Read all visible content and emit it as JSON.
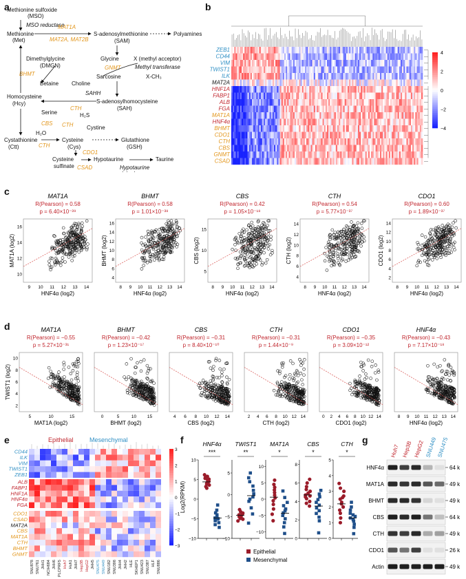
{
  "panels": {
    "a": "a",
    "b": "b",
    "c": "c",
    "d": "d",
    "e": "e",
    "f": "f",
    "g": "g"
  },
  "colors": {
    "orange": "#e2951a",
    "blue": "#2f8fc4",
    "red": "#c0252d",
    "heat_high": "#d7191c",
    "heat_low": "#1f2fd6",
    "epithelial": "#9b1c2a",
    "mesenchymal": "#1f4f8a"
  },
  "pathway": {
    "mso": "Methionine sulfoxide",
    "mso_abbr": "(MSO)",
    "mso_reductase": "MSO reductase",
    "met": "Methionine",
    "met_abbr": "(Met)",
    "mat1a": "MAT1A",
    "mat2ab": "MAT2A, MAT2B",
    "sam": "S-adenosylmethionine",
    "sam_abbr": "(SAM)",
    "polyamines": "Polyamines",
    "dmgn": "Dimethylglycine",
    "dmgn_abbr": "(DMGN)",
    "bhmt": "BHMT",
    "betaine": "Betaine",
    "choline": "Choline",
    "glycine": "Glycine",
    "gnmt": "GNMT",
    "sarcosine": "Sarcosine",
    "x_acceptor": "X (methyl acceptor)",
    "methyl_transferase": "Methyl transferase",
    "xch3": "X-CH₃",
    "hcy": "Homocysteine",
    "hcy_abbr": "(Hcy)",
    "sahh": "SAHH",
    "sah": "S-adenosylhomocysteine",
    "sah_abbr": "(SAH)",
    "serine": "Serine",
    "cth": "CTH",
    "h2s": "H₂S",
    "cbs": "CBS",
    "h2o": "H₂O",
    "cystine": "Cystine",
    "ctt": "Cystathionine",
    "ctt_abbr": "(Ctt)",
    "cys": "Cysteine",
    "cys_abbr": "(Cys)",
    "gsh": "Glutathione",
    "gsh_abbr": "(GSH)",
    "cdo1": "CDO1",
    "cys_sulfinate_1": "Cysteine",
    "cys_sulfinate_2": "sulfinate",
    "csad": "CSAD",
    "hypotaurine": "Hypotaurine",
    "taurine": "Taurine",
    "htd_1": "Hypotaurine",
    "htd_2": "dehydrogenase"
  },
  "heatmap_b": {
    "genes": [
      {
        "name": "ZEB1",
        "group": "blue"
      },
      {
        "name": "CD44",
        "group": "blue"
      },
      {
        "name": "VIM",
        "group": "blue"
      },
      {
        "name": "TWIST1",
        "group": "blue"
      },
      {
        "name": "ILK",
        "group": "blue"
      },
      {
        "name": "MAT2A",
        "group": "black"
      },
      {
        "name": "HNF1A",
        "group": "red"
      },
      {
        "name": "FABP1",
        "group": "red"
      },
      {
        "name": "ALB",
        "group": "red"
      },
      {
        "name": "FGA",
        "group": "red"
      },
      {
        "name": "MAT1A",
        "group": "orange"
      },
      {
        "name": "HNF4α",
        "group": "red"
      },
      {
        "name": "BHMT",
        "group": "orange"
      },
      {
        "name": "CDO1",
        "group": "orange"
      },
      {
        "name": "CTH",
        "group": "orange"
      },
      {
        "name": "CBS",
        "group": "orange"
      },
      {
        "name": "GNMT",
        "group": "orange"
      },
      {
        "name": "CSAD",
        "group": "orange"
      }
    ],
    "scale_ticks": [
      "4",
      "2",
      "0",
      "−2",
      "−4"
    ]
  },
  "scatter_c": {
    "xlabel": "HNF4α (log2)",
    "plots": [
      {
        "gene": "MAT1A",
        "ylabel": "MAT1A (log2)",
        "r": "R(Pearson) = 0.58",
        "p": "p = 6.40×10⁻³⁹",
        "xticks": [
          "9",
          "10",
          "11",
          "12",
          "13",
          "14"
        ],
        "yticks": [
          "10",
          "12",
          "14",
          "16"
        ],
        "r_val": 0.58
      },
      {
        "gene": "BHMT",
        "ylabel": "BHMT (log2)",
        "r": "R(Pearson) = 0.58",
        "p": "p = 1.01×10⁻³⁸",
        "xticks": [
          "8",
          "9",
          "10",
          "11",
          "12",
          "13",
          "14"
        ],
        "yticks": [
          "4",
          "6",
          "8",
          "10",
          "12",
          "14",
          "16"
        ],
        "r_val": 0.58
      },
      {
        "gene": "CBS",
        "ylabel": "CBS (log2)",
        "r": "R(Pearson) = 0.42",
        "p": "p = 1.05×10⁻¹⁸",
        "xticks": [
          "8",
          "9",
          "10",
          "11",
          "12",
          "13",
          "14"
        ],
        "yticks": [
          "5",
          "10",
          "15"
        ],
        "r_val": 0.42
      },
      {
        "gene": "CTH",
        "ylabel": "CTH (log2)",
        "r": "R(Pearson) = 0.54",
        "p": "p = 5.77×10⁻³⁷",
        "xticks": [
          "8",
          "9",
          "10",
          "11",
          "12",
          "13",
          "14"
        ],
        "yticks": [
          "4",
          "6",
          "8",
          "10",
          "12",
          "14"
        ],
        "r_val": 0.54
      },
      {
        "gene": "CDO1",
        "ylabel": "CDO1 (log2)",
        "r": "R(Pearson) = 0.60",
        "p": "p = 1.89×10⁻³⁷",
        "xticks": [
          "8",
          "9",
          "10",
          "11",
          "12",
          "13",
          "14"
        ],
        "yticks": [
          "2",
          "4",
          "6",
          "8",
          "10",
          "12",
          "14"
        ],
        "r_val": 0.6
      }
    ]
  },
  "scatter_d": {
    "ylabel": "TWIST1 (log2)",
    "plots": [
      {
        "gene": "MAT1A",
        "xlabel": "MAT1A (log2)",
        "r": "R(Pearson) = −0.55",
        "p": "p = 5.27×10⁻³¹",
        "xticks": [
          "5",
          "10",
          "15"
        ],
        "yticks": [
          "2",
          "4",
          "6",
          "8",
          "10"
        ],
        "r_val": -0.55
      },
      {
        "gene": "BHMT",
        "xlabel": "BHMT (log2)",
        "r": "R(Pearson) = −0.42",
        "p": "p = 1.23×10⁻¹⁷",
        "xticks": [
          "0",
          "5",
          "10",
          "15"
        ],
        "yticks": [],
        "r_val": -0.42
      },
      {
        "gene": "CBS",
        "xlabel": "CBS (log2)",
        "r": "R(Pearson) = −0.31",
        "p": "p = 8.40×10⁻¹⁰",
        "xticks": [
          "4",
          "6",
          "8",
          "10",
          "12",
          "14"
        ],
        "yticks": [],
        "r_val": -0.31
      },
      {
        "gene": "CTH",
        "xlabel": "CTH (log2)",
        "r": "R(Pearson) = −0.31",
        "p": "p = 1.44×10⁻⁹",
        "xticks": [
          "2",
          "4",
          "6",
          "8",
          "10",
          "12",
          "14"
        ],
        "yticks": [],
        "r_val": -0.31
      },
      {
        "gene": "CDO1",
        "xlabel": "CDO1 (log2)",
        "r": "R(Pearson) = −0.35",
        "p": "p = 3.09×10⁻¹²",
        "xticks": [
          "0",
          "2",
          "4",
          "6",
          "8",
          "10",
          "12",
          "14"
        ],
        "yticks": [],
        "r_val": -0.35
      },
      {
        "gene": "HNF4α",
        "xlabel": "HNF4α (log2)",
        "r": "R(Pearson) = −0.43",
        "p": "p = 7.17×10⁻¹⁸",
        "xticks": [
          "8",
          "9",
          "10",
          "11",
          "12",
          "13",
          "14"
        ],
        "yticks": [],
        "r_val": -0.43
      }
    ]
  },
  "heatmap_e": {
    "epithelial": "Epithelial",
    "mesenchymal": "Mesenchymal",
    "genes": [
      {
        "name": "CD44",
        "group": "blue"
      },
      {
        "name": "ILK",
        "group": "blue"
      },
      {
        "name": "VIM",
        "group": "blue"
      },
      {
        "name": "TWIST1",
        "group": "blue"
      },
      {
        "name": "ZEB1",
        "group": "blue"
      },
      {
        "name": "ALB",
        "group": "red"
      },
      {
        "name": "FABP1",
        "group": "red"
      },
      {
        "name": "HNF1A",
        "group": "red"
      },
      {
        "name": "HNF4α",
        "group": "red"
      },
      {
        "name": "FGA",
        "group": "red"
      },
      {
        "name": "CDO1",
        "group": "orange"
      },
      {
        "name": "CSAD",
        "group": "orange"
      },
      {
        "name": "MAT2A",
        "group": "black"
      },
      {
        "name": "CBS",
        "group": "orange"
      },
      {
        "name": "MAT1A",
        "group": "orange"
      },
      {
        "name": "CTH",
        "group": "orange"
      },
      {
        "name": "BHMT",
        "group": "orange"
      },
      {
        "name": "GNMT",
        "group": "orange"
      }
    ],
    "cell_lines": [
      {
        "name": "SNU878",
        "group": "black"
      },
      {
        "name": "SNU761",
        "group": "black"
      },
      {
        "name": "JHH1",
        "group": "black"
      },
      {
        "name": "NCIH684",
        "group": "black"
      },
      {
        "name": "JHH6",
        "group": "black"
      },
      {
        "name": "PLCPRF5",
        "group": "black"
      },
      {
        "name": "Huh7",
        "group": "red"
      },
      {
        "name": "Huh1",
        "group": "black"
      },
      {
        "name": "JHH7",
        "group": "black"
      },
      {
        "name": "Hep3B",
        "group": "red"
      },
      {
        "name": "HepG2",
        "group": "red"
      },
      {
        "name": "JHH5",
        "group": "black"
      },
      {
        "name": "SNU475",
        "group": "blue"
      },
      {
        "name": "SNU449",
        "group": "blue"
      },
      {
        "name": "SNU182",
        "group": "black"
      },
      {
        "name": "SNU398",
        "group": "black"
      },
      {
        "name": "JHH4",
        "group": "black"
      },
      {
        "name": "JHH2",
        "group": "black"
      },
      {
        "name": "HLE",
        "group": "black"
      },
      {
        "name": "SKHEP1",
        "group": "black"
      },
      {
        "name": "SNU423",
        "group": "black"
      },
      {
        "name": "SNU387",
        "group": "black"
      },
      {
        "name": "HLF",
        "group": "black"
      },
      {
        "name": "SNU886",
        "group": "black"
      }
    ],
    "scale_ticks": [
      "3",
      "2",
      "1",
      "0",
      "−1",
      "−2",
      "−3"
    ]
  },
  "dotplot_f": {
    "ylabel": "Log2(RPKM)",
    "legend": {
      "epithelial": "Epithelial",
      "mesenchymal": "Mesenchymal"
    },
    "plots": [
      {
        "gene": "HNF4α",
        "sig": "***",
        "yticks": [
          "10",
          "5",
          "0",
          "−5",
          "−10"
        ],
        "ymin": -10,
        "ymax": 10,
        "epi": [
          6.2,
          5.8,
          5.5,
          5.3,
          5.1,
          4.9,
          4.7,
          4.5,
          4.2,
          3.9,
          3.6,
          3.2,
          2.8,
          4.0
        ],
        "mes": [
          -1.5,
          -2.8,
          -3.5,
          -4.0,
          -4.4,
          -4.8,
          -5.1,
          -5.5,
          -6.0,
          -6.5,
          -7.2,
          -5.0
        ],
        "epi_mean": 4.4,
        "mes_mean": -4.8
      },
      {
        "gene": "TWIST1",
        "sig": "**",
        "yticks": [
          "5",
          "0",
          "−5",
          "−10"
        ],
        "ymin": -10,
        "ymax": 8,
        "epi": [
          -3.4,
          -3.9,
          -4.2,
          -4.4,
          -4.6,
          -4.8,
          -5.0,
          -5.2,
          -5.4,
          -5.6,
          -6.0,
          -4.5
        ],
        "mes": [
          5.0,
          3.9,
          3.0,
          2.0,
          1.0,
          0.2,
          -0.5,
          -1.5,
          -3.0,
          -4.4,
          -6.5,
          -1.0
        ],
        "epi_mean": -4.7,
        "mes_mean": -0.2
      },
      {
        "gene": "MAT1A",
        "sig": "*",
        "yticks": [
          "10",
          "5",
          "0",
          "−5",
          "−10"
        ],
        "ymin": -12,
        "ymax": 12,
        "epi": [
          5.8,
          4.5,
          3.6,
          2.8,
          2.0,
          1.2,
          0.4,
          -0.5,
          -1.6,
          -3.0,
          -4.6,
          -6.6
        ],
        "mes": [
          2.5,
          0.5,
          -1.0,
          -2.0,
          -3.0,
          -3.6,
          -4.2,
          -5.0,
          -6.0,
          -7.2,
          -8.5,
          -10.5
        ],
        "epi_mean": 0.6,
        "mes_mean": -4.3
      },
      {
        "gene": "CBS",
        "sig": "*",
        "yticks": [
          "8",
          "6",
          "4",
          "2",
          "0"
        ],
        "ymin": 0,
        "ymax": 8.5,
        "epi": [
          6.4,
          6.0,
          5.6,
          5.3,
          5.1,
          4.9,
          4.7,
          4.5,
          4.3,
          4.0,
          3.8,
          3.5,
          4.6
        ],
        "mes": [
          5.2,
          4.8,
          4.5,
          4.2,
          3.9,
          3.6,
          3.3,
          3.0,
          2.7,
          2.3,
          1.9,
          0.6
        ],
        "epi_mean": 4.7,
        "mes_mean": 3.5
      },
      {
        "gene": "CTH",
        "sig": "*",
        "yticks": [
          "5",
          "4",
          "3",
          "2",
          "1",
          "0"
        ],
        "ymin": 0,
        "ymax": 5,
        "epi": [
          3.5,
          3.2,
          3.0,
          2.7,
          2.5,
          2.3,
          2.2,
          2.0,
          1.8,
          1.6,
          1.3,
          1.0,
          2.6
        ],
        "mes": [
          2.3,
          2.0,
          1.8,
          1.6,
          1.5,
          1.4,
          1.3,
          1.2,
          1.1,
          0.9,
          0.7,
          0.3
        ],
        "epi_mean": 2.2,
        "mes_mean": 1.3
      }
    ]
  },
  "western_g": {
    "cell_lines": [
      {
        "name": "Huh7",
        "group": "red"
      },
      {
        "name": "Hep3B",
        "group": "red"
      },
      {
        "name": "HepG2",
        "group": "red"
      },
      {
        "name": "SNU449",
        "group": "blue"
      },
      {
        "name": "SNU475",
        "group": "blue"
      }
    ],
    "bands": [
      {
        "protein": "HNF4α",
        "mw": "64 k",
        "intensity": [
          0.95,
          0.8,
          0.9,
          0.25,
          0.05
        ]
      },
      {
        "protein": "MAT1A",
        "mw": "49 k",
        "intensity": [
          0.9,
          0.85,
          0.9,
          0.7,
          0.6
        ]
      },
      {
        "protein": "BHMT",
        "mw": "49 k",
        "intensity": [
          0.9,
          0.9,
          0.85,
          0.1,
          0.05
        ]
      },
      {
        "protein": "CBS",
        "mw": "64 k",
        "intensity": [
          0.95,
          0.9,
          0.95,
          0.55,
          0.2
        ]
      },
      {
        "protein": "CTH",
        "mw": "49 k",
        "intensity": [
          0.85,
          0.8,
          0.9,
          0.3,
          0.35
        ]
      },
      {
        "protein": "CDO1",
        "mw": "26 k",
        "intensity": [
          0.7,
          0.55,
          0.8,
          0.05,
          0.05
        ]
      },
      {
        "protein": "Actin",
        "mw": "49 k",
        "intensity": [
          0.95,
          0.95,
          0.95,
          0.95,
          0.95
        ]
      }
    ]
  }
}
